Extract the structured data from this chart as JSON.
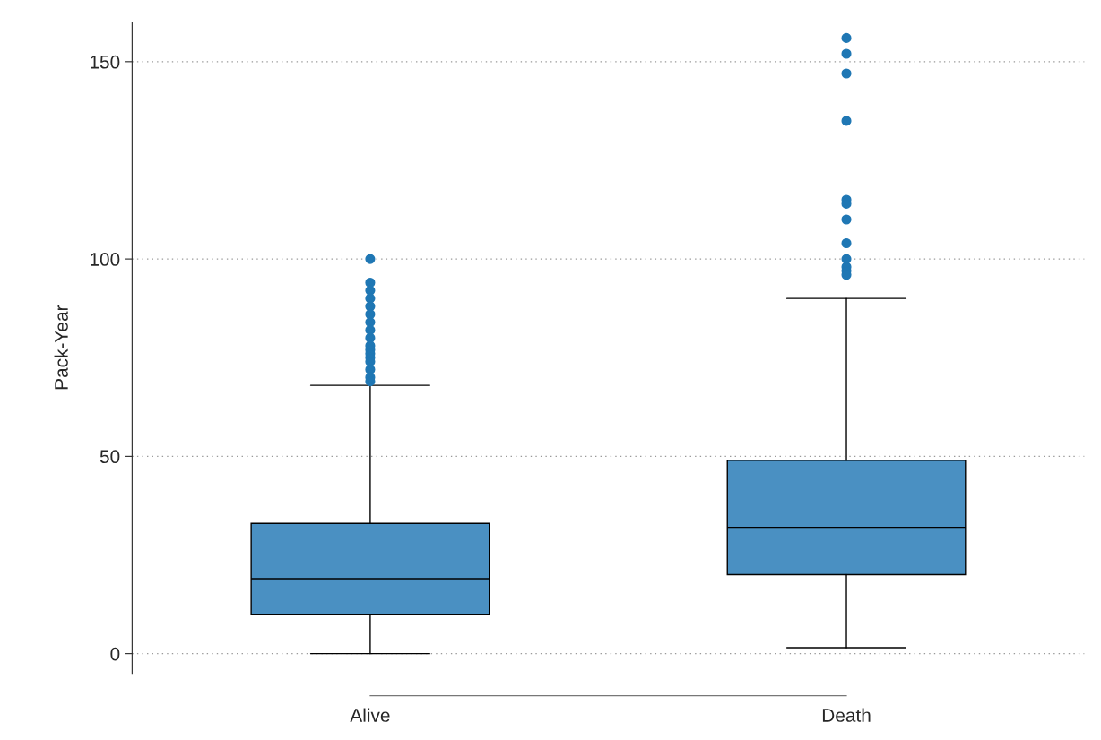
{
  "chart_data": {
    "type": "box",
    "ylabel": "Pack-Year",
    "categories": [
      "Alive",
      "Death"
    ],
    "boxes": [
      {
        "low": 0,
        "q1": 10,
        "median": 19,
        "q3": 33,
        "high": 68,
        "outliers": [
          100,
          94,
          92,
          90,
          88,
          86,
          84,
          82,
          80,
          78,
          77,
          76,
          75,
          74,
          72,
          70,
          69
        ]
      },
      {
        "low": 1.5,
        "q1": 20,
        "median": 32,
        "q3": 49,
        "high": 90,
        "outliers": [
          156,
          152,
          147,
          135,
          115,
          114,
          110,
          104,
          100,
          98,
          97,
          96
        ]
      }
    ],
    "color": "#4a90c2",
    "ylim": [
      -5,
      160
    ],
    "yticks": [
      0,
      50,
      100,
      150
    ],
    "grid": "y"
  }
}
